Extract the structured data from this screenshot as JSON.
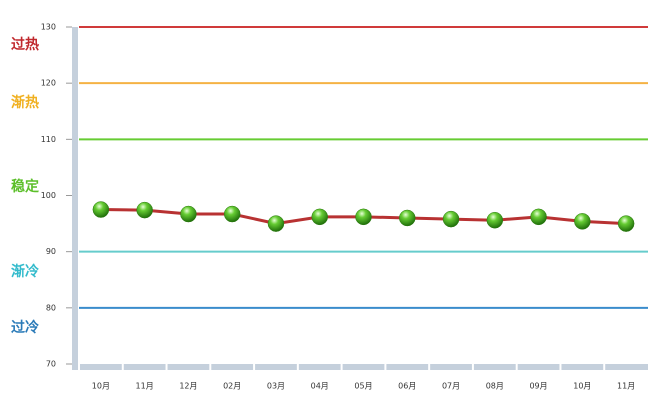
{
  "chart_data": {
    "type": "line",
    "categories": [
      "10月",
      "11月",
      "12月",
      "02月",
      "03月",
      "04月",
      "05月",
      "06月",
      "07月",
      "08月",
      "09月",
      "10月",
      "11月"
    ],
    "values": [
      97.5,
      97.4,
      96.7,
      96.7,
      95.0,
      96.2,
      96.2,
      96.0,
      95.8,
      95.6,
      96.2,
      95.4,
      95.0
    ],
    "color": "#b83232",
    "marker_color": "#3aa31a",
    "ylim": [
      70,
      130
    ],
    "yticks": [
      70,
      80,
      90,
      100,
      110,
      120,
      130
    ],
    "thresholds": [
      {
        "value": 130,
        "color": "#d03a3a"
      },
      {
        "value": 120,
        "color": "#f5b244"
      },
      {
        "value": 110,
        "color": "#66cc33"
      },
      {
        "value": 90,
        "color": "#66cccc"
      },
      {
        "value": 80,
        "color": "#3a8ccc"
      }
    ],
    "zones": [
      {
        "label": "过热",
        "color": "#c0282d"
      },
      {
        "label": "渐热",
        "color": "#f0b020"
      },
      {
        "label": "稳定",
        "color": "#5cbf2a"
      },
      {
        "label": "渐冷",
        "color": "#33bbcc"
      },
      {
        "label": "过冷",
        "color": "#2a7ab8"
      }
    ]
  }
}
